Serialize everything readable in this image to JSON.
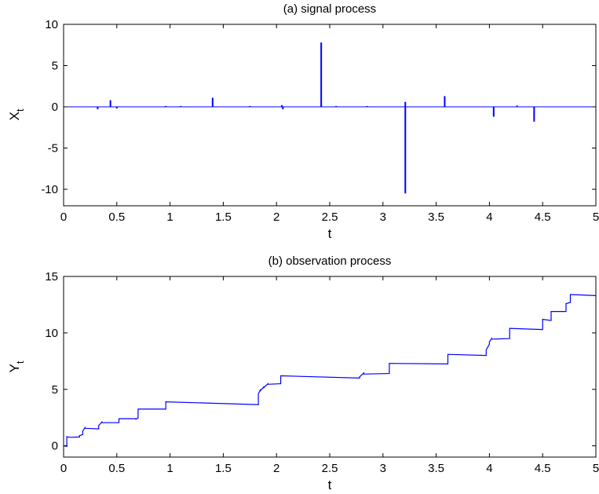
{
  "chart_data": [
    {
      "type": "line",
      "title": "(a) signal process",
      "xlabel": "t",
      "ylabel": "X",
      "ylabel_sub": "t",
      "xlim": [
        0,
        5
      ],
      "ylim": [
        -12,
        10
      ],
      "xticks": [
        "0",
        "0.5",
        "1",
        "1.5",
        "2",
        "2.5",
        "3",
        "3.5",
        "4",
        "4.5",
        "5"
      ],
      "yticks": [
        "-10",
        "-5",
        "0",
        "5",
        "10"
      ],
      "grid": false,
      "color": "#0000ff",
      "series": [
        {
          "x": [
            0.32,
            0.44,
            0.5,
            0.96,
            1.1,
            1.14,
            1.4,
            1.75,
            2.05,
            2.06,
            2.42,
            2.56,
            2.85,
            3.21,
            3.58,
            4.04,
            4.26,
            4.42
          ],
          "values": [
            -0.3,
            0.8,
            -0.2,
            0.1,
            0.1,
            0.05,
            1.1,
            0.1,
            0.2,
            -0.3,
            7.8,
            0.1,
            0.1,
            -10.5,
            1.3,
            -1.2,
            0.15,
            -1.8
          ]
        },
        {
          "x": [
            3.21
          ],
          "values": [
            0.6
          ]
        }
      ]
    },
    {
      "type": "line",
      "title": "(b) observation process",
      "xlabel": "t",
      "ylabel": "Y",
      "ylabel_sub": "t",
      "xlim": [
        0,
        5
      ],
      "ylim": [
        -1,
        15
      ],
      "xticks": [
        "0",
        "0.5",
        "1",
        "1.5",
        "2",
        "2.5",
        "3",
        "3.5",
        "4",
        "4.5",
        "5"
      ],
      "yticks": [
        "0",
        "5",
        "10",
        "15"
      ],
      "grid": false,
      "color": "#0000ff",
      "series": [
        {
          "x": [
            0,
            0.03,
            0.03,
            0.06,
            0.06,
            0.15,
            0.15,
            0.18,
            0.18,
            0.2,
            0.2,
            0.33,
            0.33,
            0.36,
            0.36,
            0.52,
            0.52,
            0.68,
            0.68,
            0.7,
            0.7,
            0.96,
            0.96,
            1.83,
            1.83,
            1.85,
            1.85,
            1.88,
            1.88,
            1.92,
            1.92,
            2.04,
            2.04,
            2.78,
            2.78,
            2.82,
            2.82,
            3.06,
            3.06,
            3.61,
            3.61,
            3.97,
            3.97,
            4.0,
            4.0,
            4.02,
            4.02,
            4.19,
            4.19,
            4.5,
            4.5,
            4.58,
            4.58,
            4.72,
            4.72,
            4.76,
            4.76,
            5.0
          ],
          "values": [
            0,
            -0.05,
            0.8,
            0.75,
            0.75,
            0.78,
            0.9,
            1.0,
            1.3,
            1.6,
            1.55,
            1.5,
            1.8,
            2.1,
            2.05,
            2.05,
            2.4,
            2.4,
            2.35,
            2.45,
            3.25,
            3.25,
            3.9,
            3.65,
            4.6,
            5.0,
            4.9,
            5.2,
            5.15,
            5.5,
            5.45,
            5.5,
            6.2,
            6.0,
            6.1,
            6.45,
            6.35,
            6.4,
            7.3,
            7.25,
            8.1,
            8.0,
            8.5,
            9.0,
            9.2,
            9.5,
            9.45,
            9.5,
            10.4,
            10.3,
            11.2,
            11.1,
            11.9,
            11.9,
            12.6,
            12.7,
            13.4,
            13.3
          ]
        }
      ]
    }
  ]
}
